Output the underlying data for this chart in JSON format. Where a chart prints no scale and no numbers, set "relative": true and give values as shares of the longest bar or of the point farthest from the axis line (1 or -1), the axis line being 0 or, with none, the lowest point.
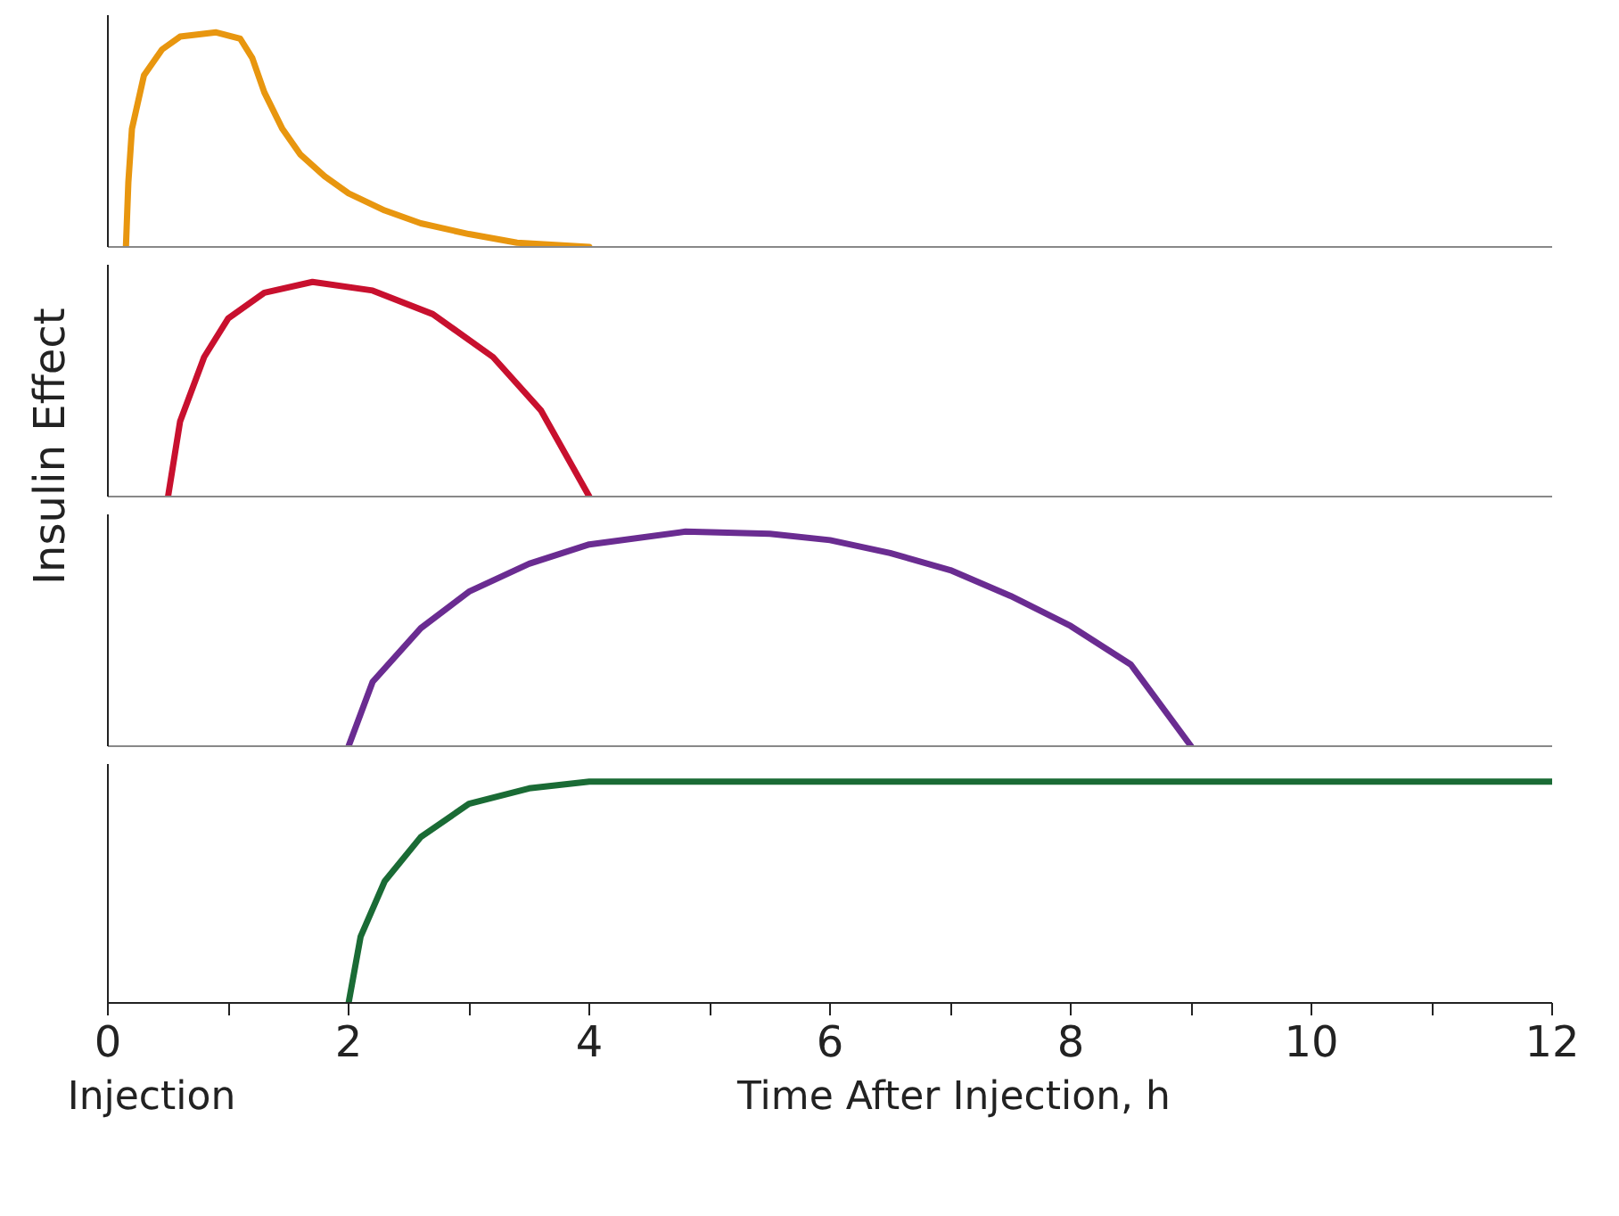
{
  "chart_data": [
    {
      "type": "line",
      "relative": true,
      "ylabel": "Insulin Effect",
      "xlim": [
        0,
        12
      ],
      "tick_labels": false,
      "grid": false,
      "marker": "none",
      "line_style": "solid",
      "series": [
        {
          "color": "#e8960f",
          "x": [
            0.15,
            0.17,
            0.2,
            0.3,
            0.45,
            0.6,
            0.9,
            1.1,
            1.2,
            1.3,
            1.45,
            1.6,
            1.8,
            2.0,
            2.3,
            2.6,
            3.0,
            3.4,
            4.0
          ],
          "values": [
            0,
            0.3,
            0.55,
            0.8,
            0.92,
            0.98,
            1.0,
            0.97,
            0.88,
            0.72,
            0.55,
            0.43,
            0.33,
            0.25,
            0.17,
            0.11,
            0.06,
            0.02,
            0
          ]
        }
      ]
    },
    {
      "type": "line",
      "relative": true,
      "xlim": [
        0,
        12
      ],
      "tick_labels": false,
      "grid": false,
      "marker": "none",
      "line_style": "solid",
      "series": [
        {
          "color": "#c8102e",
          "x": [
            0.5,
            0.6,
            0.8,
            1.0,
            1.3,
            1.7,
            2.2,
            2.7,
            3.2,
            3.6,
            4.0
          ],
          "values": [
            0,
            0.35,
            0.65,
            0.83,
            0.95,
            1.0,
            0.96,
            0.85,
            0.65,
            0.4,
            0
          ]
        }
      ]
    },
    {
      "type": "line",
      "relative": true,
      "xlim": [
        0,
        12
      ],
      "tick_labels": false,
      "grid": false,
      "marker": "none",
      "line_style": "solid",
      "series": [
        {
          "color": "#6a2c91",
          "x": [
            2,
            2.2,
            2.6,
            3.0,
            3.5,
            4.0,
            4.8,
            5.5,
            6.0,
            6.5,
            7.0,
            7.5,
            8.0,
            8.5,
            9.0
          ],
          "values": [
            0,
            0.3,
            0.55,
            0.72,
            0.85,
            0.94,
            1.0,
            0.99,
            0.96,
            0.9,
            0.82,
            0.7,
            0.56,
            0.38,
            0
          ]
        }
      ]
    },
    {
      "type": "line",
      "relative": true,
      "xlabel": "Time After Injection, h",
      "annotations": [
        "Injection"
      ],
      "xlim": [
        0,
        12
      ],
      "xticks": [
        0,
        {
          "value": 1,
          "label": null
        },
        2,
        {
          "value": 3,
          "label": null
        },
        4,
        {
          "value": 5,
          "label": null
        },
        6,
        {
          "value": 7,
          "label": null
        },
        8,
        {
          "value": 9,
          "label": null
        },
        10,
        {
          "value": 11,
          "label": null
        },
        12
      ],
      "tick_labels": "x",
      "grid": false,
      "marker": "none",
      "line_style": "solid",
      "series": [
        {
          "color": "#1a6b35",
          "x": [
            2,
            2.1,
            2.3,
            2.6,
            3.0,
            3.5,
            4.0,
            12
          ],
          "values": [
            0,
            0.3,
            0.55,
            0.75,
            0.9,
            0.97,
            1.0,
            1.0
          ]
        }
      ]
    }
  ]
}
